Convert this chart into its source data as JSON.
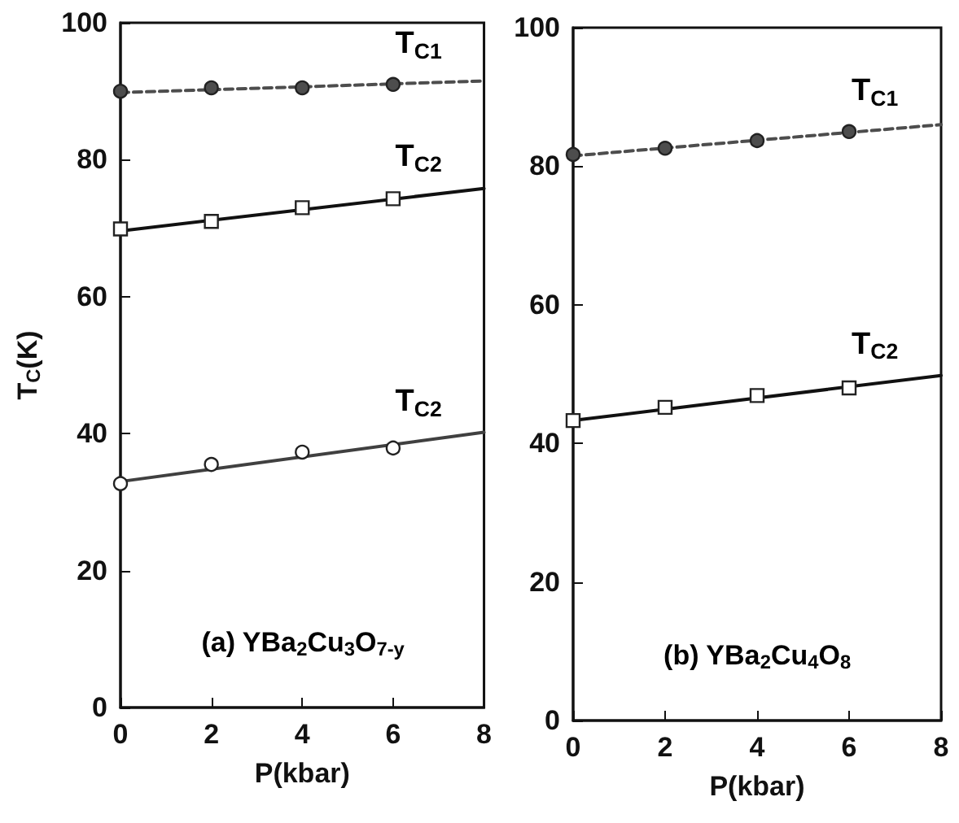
{
  "chart_data": [
    {
      "type": "scatter",
      "xlabel": "P(kbar)",
      "ylabel": "T$_{C}$(K)",
      "xlim": [
        0,
        8
      ],
      "xticks": [
        0,
        2,
        4,
        6,
        8
      ],
      "ylim": [
        0,
        100
      ],
      "yticks": [
        0,
        20,
        40,
        60,
        80,
        100
      ],
      "grid": false,
      "annotations": [
        "(a) YBa$_{2}$Cu$_{3}$O$_{7-y}$"
      ],
      "series": [
        {
          "type": "line",
          "name": "T$_{C1}$",
          "color": "#4d4d4d",
          "x": [
            0,
            8
          ],
          "values": [
            89.8,
            91.5
          ],
          "marker": "none",
          "line_style": "dashed"
        },
        {
          "color": "#4d4d4d",
          "x": [
            0,
            2,
            4,
            6
          ],
          "values": [
            90.0,
            90.5,
            90.5,
            91.0
          ],
          "marker": "circle"
        },
        {
          "type": "line",
          "name": "T$_{C2}$",
          "color": "#111111",
          "x": [
            0,
            8
          ],
          "values": [
            69.6,
            75.8
          ],
          "marker": "none",
          "line_style": "solid"
        },
        {
          "color": "#ffffff",
          "x": [
            0,
            2,
            4,
            6
          ],
          "values": [
            69.9,
            71.0,
            73.0,
            74.3
          ],
          "marker": "square"
        },
        {
          "type": "line",
          "name": "T$_{C2}$",
          "color": "#404040",
          "x": [
            0,
            8
          ],
          "values": [
            33.0,
            40.2
          ],
          "marker": "none",
          "line_style": "solid"
        },
        {
          "color": "#ffffff",
          "x": [
            0,
            2,
            4,
            6
          ],
          "values": [
            32.7,
            35.5,
            37.3,
            37.9
          ],
          "marker": "circle"
        }
      ]
    },
    {
      "type": "scatter",
      "xlabel": "P(kbar)",
      "xlim": [
        0,
        8
      ],
      "xticks": [
        0,
        2,
        4,
        6,
        8
      ],
      "ylim": [
        0,
        100
      ],
      "yticks": [
        0,
        20,
        40,
        60,
        80,
        100
      ],
      "grid": false,
      "annotations": [
        "(b) YBa$_{2}$Cu$_{4}$O$_{8}$"
      ],
      "series": [
        {
          "type": "line",
          "name": "T$_{C1}$",
          "color": "#4d4d4d",
          "x": [
            0,
            8
          ],
          "values": [
            81.5,
            86.0
          ],
          "marker": "none",
          "line_style": "dashed"
        },
        {
          "color": "#4d4d4d",
          "x": [
            0,
            2,
            4,
            6
          ],
          "values": [
            81.7,
            82.6,
            83.7,
            85.0
          ],
          "marker": "circle"
        },
        {
          "type": "line",
          "name": "T$_{C2}$",
          "color": "#111111",
          "x": [
            0,
            8
          ],
          "values": [
            43.3,
            49.8
          ],
          "marker": "none",
          "line_style": "solid"
        },
        {
          "color": "#ffffff",
          "x": [
            0,
            2,
            4,
            6
          ],
          "values": [
            43.3,
            45.2,
            46.9,
            48.0
          ],
          "marker": "square"
        }
      ]
    }
  ]
}
